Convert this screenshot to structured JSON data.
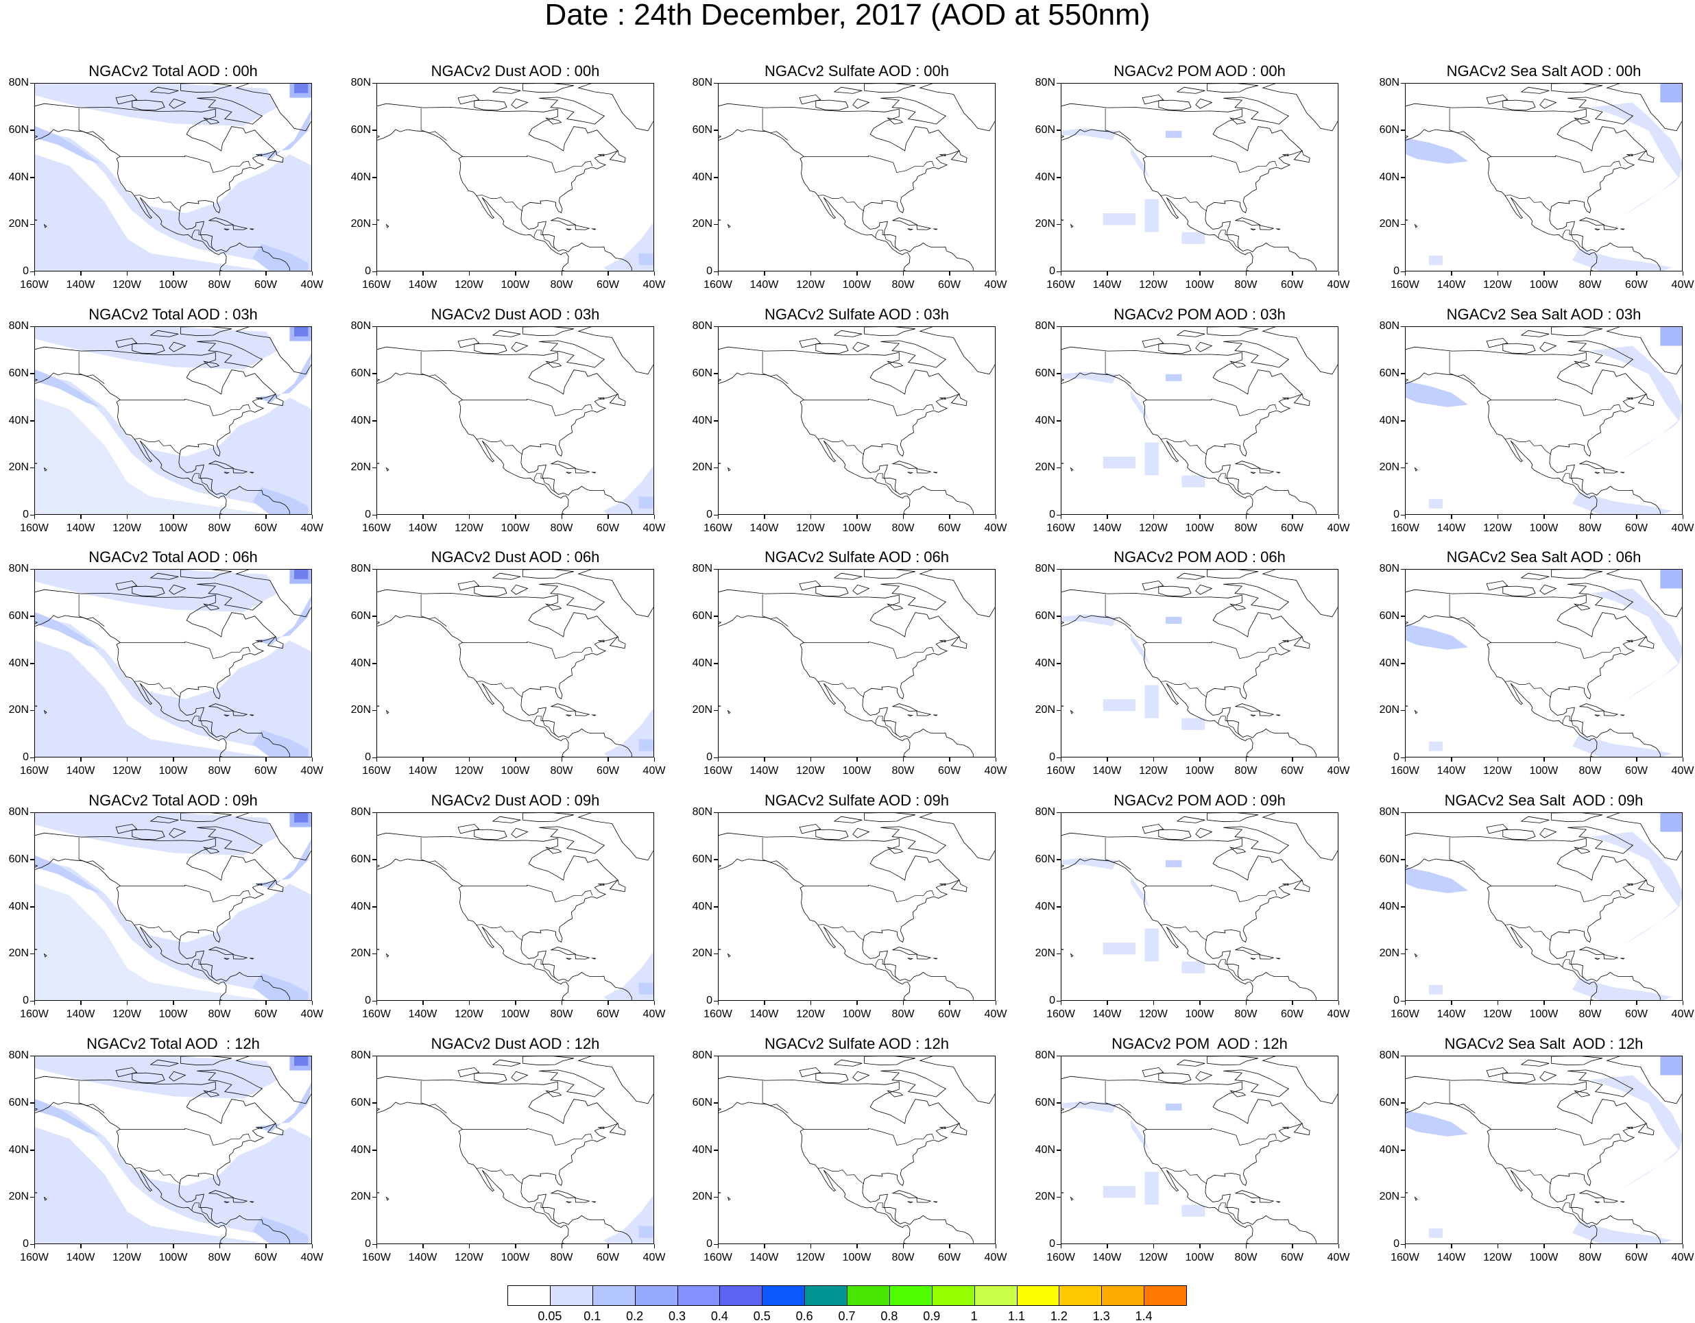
{
  "title": "Date : 24th December, 2017 (AOD at 550nm)",
  "latitude_labels": [
    "80N",
    "60N",
    "40N",
    "20N",
    "0"
  ],
  "longitude_labels": [
    "160W",
    "140W",
    "120W",
    "100W",
    "80W",
    "60W",
    "40W"
  ],
  "map_extent": {
    "lon_min": -160,
    "lon_max": -40,
    "lat_min": 0,
    "lat_max": 80
  },
  "species": [
    "Total",
    "Dust",
    "Sulfate",
    "POM",
    "Sea Salt"
  ],
  "hours": [
    "00h",
    "03h",
    "06h",
    "09h",
    "12h"
  ],
  "panels": [
    {
      "title": "NGACv2 Total AOD : 00h",
      "species": "Total",
      "hour": "00h"
    },
    {
      "title": "NGACv2 Dust AOD : 00h",
      "species": "Dust",
      "hour": "00h"
    },
    {
      "title": "NGACv2 Sulfate AOD : 00h",
      "species": "Sulfate",
      "hour": "00h"
    },
    {
      "title": "NGACv2 POM AOD : 00h",
      "species": "POM",
      "hour": "00h"
    },
    {
      "title": "NGACv2 Sea Salt AOD : 00h",
      "species": "Sea Salt",
      "hour": "00h"
    },
    {
      "title": "NGACv2 Total AOD : 03h",
      "species": "Total",
      "hour": "03h"
    },
    {
      "title": "NGACv2 Dust AOD : 03h",
      "species": "Dust",
      "hour": "03h"
    },
    {
      "title": "NGACv2 Sulfate AOD : 03h",
      "species": "Sulfate",
      "hour": "03h"
    },
    {
      "title": "NGACv2 POM AOD : 03h",
      "species": "POM",
      "hour": "03h"
    },
    {
      "title": "NGACv2 Sea Salt AOD : 03h",
      "species": "Sea Salt",
      "hour": "03h"
    },
    {
      "title": "NGACv2 Total AOD : 06h",
      "species": "Total",
      "hour": "06h"
    },
    {
      "title": "NGACv2 Dust AOD : 06h",
      "species": "Dust",
      "hour": "06h"
    },
    {
      "title": "NGACv2 Sulfate AOD : 06h",
      "species": "Sulfate",
      "hour": "06h"
    },
    {
      "title": "NGACv2 POM AOD : 06h",
      "species": "POM",
      "hour": "06h"
    },
    {
      "title": "NGACv2 Sea Salt AOD : 06h",
      "species": "Sea Salt",
      "hour": "06h"
    },
    {
      "title": "NGACv2 Total AOD : 09h",
      "species": "Total",
      "hour": "09h"
    },
    {
      "title": "NGACv2 Dust AOD : 09h",
      "species": "Dust",
      "hour": "09h"
    },
    {
      "title": "NGACv2 Sulfate AOD : 09h",
      "species": "Sulfate",
      "hour": "09h"
    },
    {
      "title": "NGACv2 POM AOD : 09h",
      "species": "POM",
      "hour": "09h"
    },
    {
      "title": "NGACv2 Sea Salt  AOD : 09h",
      "species": "Sea Salt",
      "hour": "09h"
    },
    {
      "title": "NGACv2 Total AOD  : 12h",
      "species": "Total",
      "hour": "12h"
    },
    {
      "title": "NGACv2 Dust AOD : 12h",
      "species": "Dust",
      "hour": "12h"
    },
    {
      "title": "NGACv2 Sulfate AOD : 12h",
      "species": "Sulfate",
      "hour": "12h"
    },
    {
      "title": "NGACv2 POM  AOD : 12h",
      "species": "POM",
      "hour": "12h"
    },
    {
      "title": "NGACv2 Sea Salt  AOD : 12h",
      "species": "Sea Salt",
      "hour": "12h"
    }
  ],
  "colorbar": {
    "labels": [
      "0.05",
      "0.1",
      "0.2",
      "0.3",
      "0.4",
      "0.5",
      "0.6",
      "0.7",
      "0.8",
      "0.9",
      "1",
      "1.1",
      "1.2",
      "1.3",
      "1.4"
    ],
    "colors": [
      "#ffffff",
      "#d7e1ff",
      "#b4c6ff",
      "#96aaff",
      "#8291ff",
      "#5a64f0",
      "#0a5aff",
      "#009696",
      "#46e600",
      "#50ff00",
      "#96ff00",
      "#c8ff46",
      "#ffff00",
      "#ffc800",
      "#ffaa00",
      "#ff7800",
      "#ff2800"
    ]
  },
  "aod_shading_colors": {
    "light": "#dbe3ff",
    "medium": "#c2d0ff",
    "strong": "#a9b9ff",
    "dense": "#6f80ee"
  }
}
